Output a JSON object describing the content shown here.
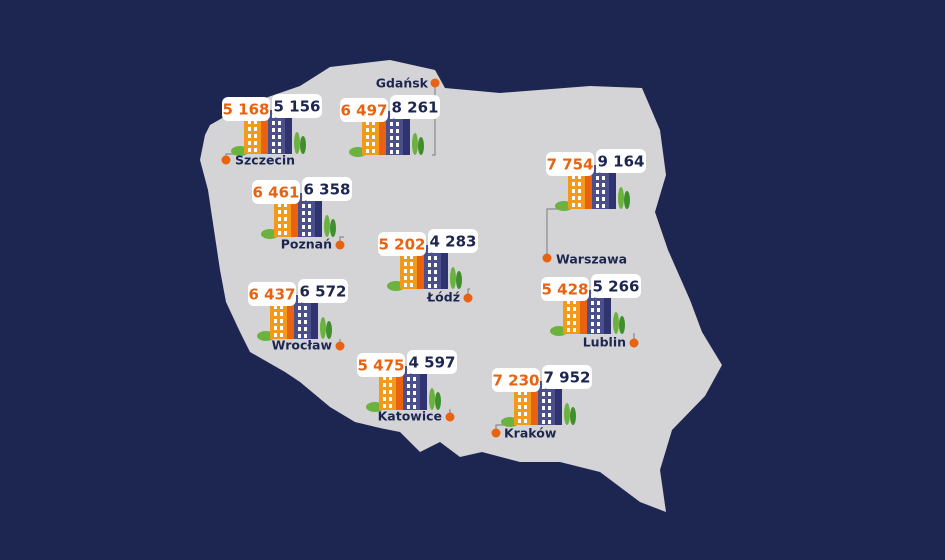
{
  "cities": [
    {
      "name": "Szczecin",
      "orange": "5 168",
      "navy": "5 156"
    },
    {
      "name": "Gdańsk",
      "orange": "6 497",
      "navy": "8 261"
    },
    {
      "name": "Poznań",
      "orange": "6 461",
      "navy": "6 358"
    },
    {
      "name": "Łódź",
      "orange": "5 202",
      "navy": "4 283"
    },
    {
      "name": "Warszawa",
      "orange": "7 754",
      "navy": "9 164"
    },
    {
      "name": "Wrocław",
      "orange": "6 437",
      "navy": "6 572"
    },
    {
      "name": "Lublin",
      "orange": "5 428",
      "navy": "5 266"
    },
    {
      "name": "Katowice",
      "orange": "5 475",
      "navy": "4 597"
    },
    {
      "name": "Kraków",
      "orange": "7 230",
      "navy": "7 952"
    }
  ]
}
